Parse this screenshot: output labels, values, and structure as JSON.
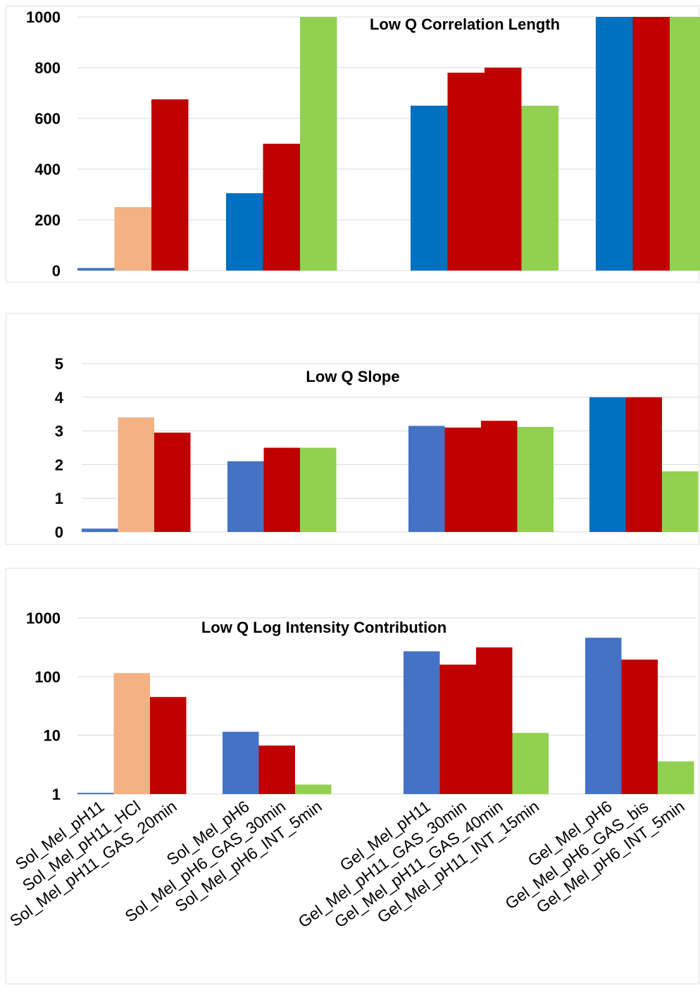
{
  "colors": {
    "blue_light": "#4472C4",
    "blue_dark": "#0070C0",
    "salmon": "#F4B183",
    "red": "#C00000",
    "green": "#92D050",
    "grid": "#D9D9D9",
    "frame": "#E0E0E0"
  },
  "categories": [
    "Sol_Mel_pH11",
    "Sol_Mel_pH11_HCl",
    "Sol_Mel_pH11_GAS_20min",
    "Sol_Mel_pH6",
    "Sol_Mel_pH6_GAS_30min",
    "Sol_Mel_pH6_INT_5min",
    "Gel_Mel_pH11",
    "Gel_Mel_pH11_GAS_30min",
    "Gel_Mel_pH11_GAS_40min",
    "Gel_Mel_pH11_INT_15min",
    "Gel_Mel_pH6",
    "Gel_Mel_pH6_GAS_bis",
    "Gel_Mel_pH6_INT_5min"
  ],
  "chart_data": [
    {
      "type": "bar",
      "title": "Low Q Correlation Length",
      "yscale": "linear",
      "ylim": [
        0,
        1000
      ],
      "yticks": [
        "0",
        "200",
        "400",
        "600",
        "800",
        "1000"
      ],
      "grid": true,
      "categories": [
        "Sol_Mel_pH11",
        "Sol_Mel_pH11_HCl",
        "Sol_Mel_pH11_GAS_20min",
        "Sol_Mel_pH6",
        "Sol_Mel_pH6_GAS_30min",
        "Sol_Mel_pH6_INT_5min",
        "Gel_Mel_pH11",
        "Gel_Mel_pH11_GAS_30min",
        "Gel_Mel_pH11_GAS_40min",
        "Gel_Mel_pH11_INT_15min",
        "Gel_Mel_pH6",
        "Gel_Mel_pH6_GAS_bis",
        "Gel_Mel_pH6_INT_5min"
      ],
      "values": [
        10,
        250,
        675,
        305,
        500,
        1000,
        650,
        780,
        800,
        650,
        1000,
        1000,
        1000
      ],
      "bar_colors": [
        "blue_light",
        "salmon",
        "red",
        "blue_dark",
        "red",
        "green",
        "blue_dark",
        "red",
        "red",
        "green",
        "blue_dark",
        "red",
        "green"
      ]
    },
    {
      "type": "bar",
      "title": "Low Q Slope",
      "yscale": "linear",
      "ylim": [
        0,
        5
      ],
      "yticks": [
        "0",
        "1",
        "2",
        "3",
        "4",
        "5"
      ],
      "grid": true,
      "categories": [
        "Sol_Mel_pH11",
        "Sol_Mel_pH11_HCl",
        "Sol_Mel_pH11_GAS_20min",
        "Sol_Mel_pH6",
        "Sol_Mel_pH6_GAS_30min",
        "Sol_Mel_pH6_INT_5min",
        "Gel_Mel_pH11",
        "Gel_Mel_pH11_GAS_30min",
        "Gel_Mel_pH11_GAS_40min",
        "Gel_Mel_pH11_INT_15min",
        "Gel_Mel_pH6",
        "Gel_Mel_pH6_GAS_bis",
        "Gel_Mel_pH6_INT_5min"
      ],
      "values": [
        0.1,
        3.4,
        2.95,
        2.1,
        2.5,
        2.5,
        3.15,
        3.1,
        3.3,
        3.12,
        4.0,
        4.0,
        1.8
      ],
      "bar_colors": [
        "blue_light",
        "salmon",
        "red",
        "blue_light",
        "red",
        "green",
        "blue_light",
        "red",
        "red",
        "green",
        "blue_dark",
        "red",
        "green"
      ]
    },
    {
      "type": "bar",
      "title": "Low Q Log Intensity Contribution",
      "yscale": "log",
      "ylim": [
        1,
        1000
      ],
      "yticks": [
        "1",
        "10",
        "100",
        "1000"
      ],
      "grid": true,
      "categories": [
        "Sol_Mel_pH11",
        "Sol_Mel_pH11_HCl",
        "Sol_Mel_pH11_GAS_20min",
        "Sol_Mel_pH6",
        "Sol_Mel_pH6_GAS_30min",
        "Sol_Mel_pH6_INT_5min",
        "Gel_Mel_pH11",
        "Gel_Mel_pH11_GAS_30min",
        "Gel_Mel_pH11_GAS_40min",
        "Gel_Mel_pH11_INT_15min",
        "Gel_Mel_pH6",
        "Gel_Mel_pH6_GAS_bis",
        "Gel_Mel_pH6_INT_5min"
      ],
      "values": [
        1.05,
        115,
        45,
        11.5,
        6.7,
        1.45,
        270,
        160,
        315,
        11,
        460,
        195,
        3.6
      ],
      "bar_colors": [
        "blue_light",
        "salmon",
        "red",
        "blue_light",
        "red",
        "green",
        "blue_light",
        "red",
        "red",
        "green",
        "blue_light",
        "red",
        "green"
      ]
    }
  ]
}
